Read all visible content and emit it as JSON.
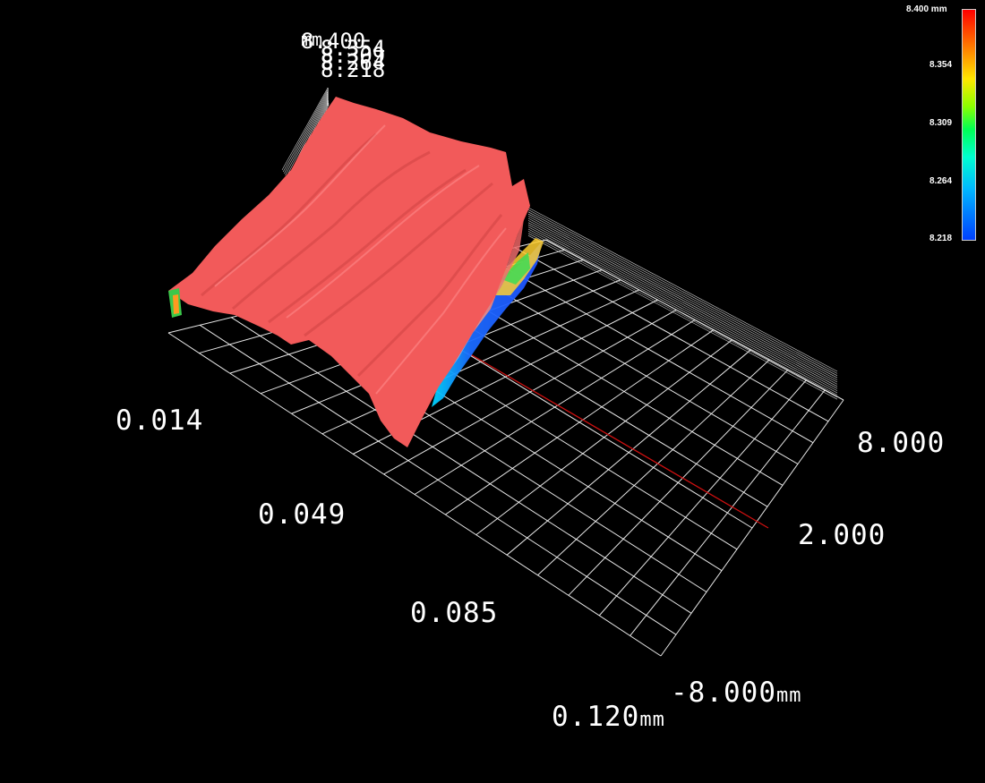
{
  "viewport": {
    "x_axis_ticks": [
      "0.014",
      "0.049",
      "0.085",
      "0.120"
    ],
    "x_axis_unit": "mm",
    "y_axis_ticks": [
      "8.000",
      "2.000",
      "-8.000"
    ],
    "y_axis_unit": "mm",
    "z_axis_overlap_labels": [
      "8.400",
      "8.354",
      "8.309",
      "8.264",
      "8.218"
    ],
    "z_axis_unit": "mm"
  },
  "legend": {
    "title": "8.400 mm",
    "ticks": [
      "8.354",
      "8.309",
      "8.264",
      "8.218"
    ]
  },
  "colors": {
    "background": "#000000",
    "surface_high": "#f25a5a",
    "surface_low": "#1a6bff",
    "grid": "#ffffff",
    "axis_marker": "#d01010"
  }
}
